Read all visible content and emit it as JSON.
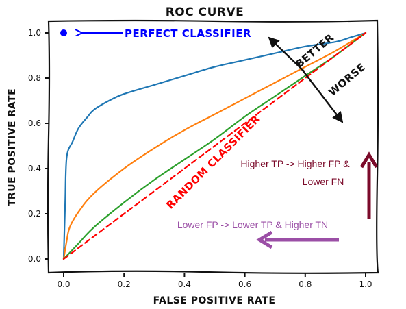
{
  "chart_data": {
    "type": "line",
    "title": "ROC CURVE",
    "xlabel": "FALSE POSITIVE RATE",
    "ylabel": "TRUE POSITIVE RATE",
    "xlim": [
      -0.05,
      1.05
    ],
    "ylim": [
      -0.05,
      1.05
    ],
    "xticks": [
      "0.0",
      "0.2",
      "0.4",
      "0.6",
      "0.8",
      "1.0"
    ],
    "yticks": [
      "0.0",
      "0.2",
      "0.4",
      "0.6",
      "0.8",
      "1.0"
    ],
    "grid": false,
    "legend": "none",
    "series": [
      {
        "color": "#1f77b4",
        "x": [
          0.0,
          0.005,
          0.01,
          0.03,
          0.05,
          0.08,
          0.1,
          0.15,
          0.2,
          0.3,
          0.4,
          0.5,
          0.6,
          0.7,
          0.8,
          0.9,
          0.95,
          1.0
        ],
        "y": [
          0.0,
          0.25,
          0.45,
          0.52,
          0.58,
          0.63,
          0.66,
          0.7,
          0.73,
          0.77,
          0.81,
          0.85,
          0.88,
          0.91,
          0.94,
          0.96,
          0.98,
          1.0
        ]
      },
      {
        "color": "#ff7f0e",
        "x": [
          0.0,
          0.01,
          0.02,
          0.05,
          0.1,
          0.2,
          0.3,
          0.4,
          0.5,
          0.6,
          0.7,
          0.8,
          0.9,
          1.0
        ],
        "y": [
          0.0,
          0.08,
          0.14,
          0.21,
          0.29,
          0.4,
          0.49,
          0.57,
          0.64,
          0.71,
          0.78,
          0.85,
          0.92,
          1.0
        ]
      },
      {
        "color": "#2ca02c",
        "x": [
          0.0,
          0.05,
          0.1,
          0.2,
          0.3,
          0.4,
          0.5,
          0.6,
          0.7,
          0.8,
          0.9,
          1.0
        ],
        "y": [
          0.0,
          0.07,
          0.14,
          0.25,
          0.35,
          0.44,
          0.53,
          0.63,
          0.72,
          0.81,
          0.9,
          1.0
        ]
      },
      {
        "name": "RANDOM CLASSIFIER",
        "color": "#ff0000",
        "dashed": true,
        "x": [
          0.0,
          1.0
        ],
        "y": [
          0.0,
          1.0
        ]
      }
    ],
    "points": [
      {
        "x": 0.0,
        "y": 1.0,
        "color": "#0000ff",
        "label": "PERFECT CLASSIFIER"
      }
    ],
    "annotations": {
      "better": "BETTER",
      "worse": "WORSE",
      "tp_fp": [
        "Higher TP -> Higher FP &",
        "Lower FN"
      ],
      "fp_tp": "Lower FP -> Lower TP & Higher TN"
    },
    "colors": {
      "perfect": "#0000ff",
      "tp_arrow": "#7b0a2a",
      "fp_arrow": "#9b4fa6",
      "tp_text": "#7b0a2a",
      "fp_text": "#9b4fa6"
    }
  }
}
